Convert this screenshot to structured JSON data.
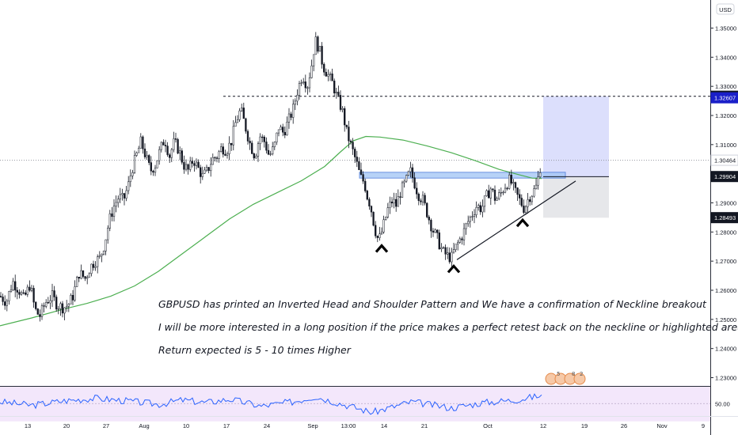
{
  "header": {
    "currency": "USD"
  },
  "chart_data": {
    "type": "candlestick",
    "symbol": "GBPUSD",
    "currency": "USD",
    "price_axis": {
      "ylim": [
        1.2255,
        1.3575
      ],
      "ticks": [
        1.35,
        1.34,
        1.33,
        1.32,
        1.31,
        1.3,
        1.29,
        1.28,
        1.27,
        1.26,
        1.25,
        1.24,
        1.23
      ],
      "tick_labels": [
        "1.35000",
        "1.34000",
        "1.33000",
        "1.32000",
        "1.31000",
        "1.30000",
        "1.29000",
        "1.28000",
        "1.27000",
        "1.26000",
        "1.25000",
        "1.24000",
        "1.23000"
      ]
    },
    "price_markers": [
      {
        "label": "1.32661",
        "value": 1.32661,
        "style": "dark"
      },
      {
        "label": "1.32607",
        "value": 1.32607,
        "style": "blue"
      },
      {
        "label": "1.30464",
        "value": 1.30464,
        "style": "light"
      },
      {
        "label": "1.29904",
        "value": 1.29904,
        "style": "dark"
      },
      {
        "label": "1.28493",
        "value": 1.28493,
        "style": "dark"
      }
    ],
    "time_axis": {
      "labels": [
        "13",
        "20",
        "27",
        "Aug",
        "10",
        "17",
        "24",
        "Sep",
        "13:00",
        "14",
        "21",
        "Oct",
        "12",
        "19",
        "26",
        "Nov",
        "9"
      ]
    },
    "price_path": [
      [
        0,
        1.258
      ],
      [
        8,
        1.256
      ],
      [
        16,
        1.263
      ],
      [
        24,
        1.26
      ],
      [
        30,
        1.257
      ],
      [
        38,
        1.262
      ],
      [
        44,
        1.2535
      ],
      [
        50,
        1.251
      ],
      [
        58,
        1.256
      ],
      [
        66,
        1.258
      ],
      [
        72,
        1.255
      ],
      [
        80,
        1.254
      ],
      [
        86,
        1.255
      ],
      [
        92,
        1.258
      ],
      [
        100,
        1.266
      ],
      [
        108,
        1.264
      ],
      [
        114,
        1.268
      ],
      [
        120,
        1.27
      ],
      [
        126,
        1.271
      ],
      [
        132,
        1.276
      ],
      [
        138,
        1.284
      ],
      [
        144,
        1.289
      ],
      [
        150,
        1.292
      ],
      [
        156,
        1.291
      ],
      [
        162,
        1.296
      ],
      [
        166,
        1.301
      ],
      [
        172,
        1.306
      ],
      [
        178,
        1.311
      ],
      [
        184,
        1.306
      ],
      [
        190,
        1.301
      ],
      [
        196,
        1.303
      ],
      [
        202,
        1.308
      ],
      [
        208,
        1.312
      ],
      [
        214,
        1.306
      ],
      [
        220,
        1.311
      ],
      [
        226,
        1.308
      ],
      [
        232,
        1.303
      ],
      [
        238,
        1.301
      ],
      [
        244,
        1.305
      ],
      [
        250,
        1.302
      ],
      [
        256,
        1.299
      ],
      [
        262,
        1.301
      ],
      [
        268,
        1.305
      ],
      [
        274,
        1.306
      ],
      [
        280,
        1.309
      ],
      [
        286,
        1.308
      ],
      [
        292,
        1.311
      ],
      [
        298,
        1.318
      ],
      [
        304,
        1.322
      ],
      [
        310,
        1.316
      ],
      [
        316,
        1.31
      ],
      [
        322,
        1.306
      ],
      [
        328,
        1.313
      ],
      [
        334,
        1.311
      ],
      [
        340,
        1.306
      ],
      [
        346,
        1.309
      ],
      [
        352,
        1.316
      ],
      [
        358,
        1.314
      ],
      [
        364,
        1.318
      ],
      [
        370,
        1.322
      ],
      [
        376,
        1.329
      ],
      [
        382,
        1.334
      ],
      [
        388,
        1.33
      ],
      [
        394,
        1.338
      ],
      [
        398,
        1.346
      ],
      [
        403,
        1.343
      ],
      [
        408,
        1.337
      ],
      [
        414,
        1.334
      ],
      [
        420,
        1.331
      ],
      [
        426,
        1.326
      ],
      [
        432,
        1.322
      ],
      [
        438,
        1.314
      ],
      [
        444,
        1.309
      ],
      [
        450,
        1.304
      ],
      [
        455,
        1.299
      ],
      [
        460,
        1.297
      ],
      [
        464,
        1.292
      ],
      [
        468,
        1.289
      ],
      [
        472,
        1.283
      ],
      [
        476,
        1.278
      ],
      [
        480,
        1.278
      ],
      [
        484,
        1.282
      ],
      [
        490,
        1.288
      ],
      [
        496,
        1.291
      ],
      [
        500,
        1.289
      ],
      [
        506,
        1.294
      ],
      [
        512,
        1.297
      ],
      [
        518,
        1.301
      ],
      [
        522,
        1.298
      ],
      [
        528,
        1.293
      ],
      [
        534,
        1.291
      ],
      [
        540,
        1.286
      ],
      [
        546,
        1.281
      ],
      [
        552,
        1.278
      ],
      [
        556,
        1.275
      ],
      [
        560,
        1.273
      ],
      [
        564,
        1.272
      ],
      [
        570,
        1.271
      ],
      [
        574,
        1.274
      ],
      [
        578,
        1.276
      ],
      [
        584,
        1.279
      ],
      [
        590,
        1.283
      ],
      [
        596,
        1.286
      ],
      [
        602,
        1.289
      ],
      [
        608,
        1.288
      ],
      [
        614,
        1.292
      ],
      [
        620,
        1.295
      ],
      [
        626,
        1.291
      ],
      [
        632,
        1.293
      ],
      [
        638,
        1.296
      ],
      [
        644,
        1.298
      ],
      [
        650,
        1.294
      ],
      [
        656,
        1.291
      ],
      [
        662,
        1.288
      ],
      [
        668,
        1.292
      ],
      [
        674,
        1.294
      ],
      [
        678,
        1.296
      ],
      [
        682,
        1.302
      ],
      [
        684,
        1.3046
      ]
    ],
    "moving_average": [
      [
        0,
        1.2478
      ],
      [
        40,
        1.2505
      ],
      [
        80,
        1.2535
      ],
      [
        110,
        1.2555
      ],
      [
        140,
        1.258
      ],
      [
        170,
        1.2615
      ],
      [
        200,
        1.2665
      ],
      [
        230,
        1.2725
      ],
      [
        260,
        1.2785
      ],
      [
        290,
        1.2845
      ],
      [
        320,
        1.2895
      ],
      [
        350,
        1.2935
      ],
      [
        380,
        1.2975
      ],
      [
        410,
        1.3025
      ],
      [
        430,
        1.3075
      ],
      [
        446,
        1.3113
      ],
      [
        462,
        1.3128
      ],
      [
        480,
        1.3126
      ],
      [
        510,
        1.3115
      ],
      [
        540,
        1.3095
      ],
      [
        570,
        1.3072
      ],
      [
        600,
        1.3045
      ],
      [
        630,
        1.3015
      ],
      [
        655,
        1.2997
      ],
      [
        672,
        1.2985
      ],
      [
        684,
        1.2984
      ]
    ],
    "neckline_zone": {
      "x_from": 454,
      "x_to": 714,
      "y_from": 1.2985,
      "y_to": 1.3005
    },
    "target_zone": {
      "x_from": 686,
      "x_to": 769,
      "y_from": 1.299,
      "y_to": 1.3266
    },
    "stop_zone": {
      "x_from": 686,
      "x_to": 769,
      "y_from": 1.2849,
      "y_to": 1.299
    },
    "resistance_level": 1.3266,
    "current_price": 1.30464,
    "trendline": [
      [
        577,
        1.2705
      ],
      [
        727,
        1.2975
      ]
    ],
    "pattern_marks": [
      {
        "name": "left-shoulder-mark",
        "x": 482,
        "y": 1.2745
      },
      {
        "name": "head-mark",
        "x": 573,
        "y": 1.2675
      },
      {
        "name": "right-shoulder-mark",
        "x": 660,
        "y": 1.2833
      }
    ],
    "rsi": {
      "ylim": [
        36,
        68
      ],
      "tick": 50,
      "tick_label": "50.00",
      "band": [
        30,
        70
      ],
      "values": [
        [
          0,
          52
        ],
        [
          40,
          48
        ],
        [
          80,
          53
        ],
        [
          120,
          56
        ],
        [
          160,
          53
        ],
        [
          200,
          49
        ],
        [
          230,
          54
        ],
        [
          260,
          51
        ],
        [
          290,
          55
        ],
        [
          330,
          47
        ],
        [
          370,
          52
        ],
        [
          398,
          58
        ],
        [
          430,
          50
        ],
        [
          470,
          40
        ],
        [
          520,
          52
        ],
        [
          570,
          45
        ],
        [
          610,
          51
        ],
        [
          650,
          54
        ],
        [
          684,
          59
        ]
      ]
    }
  },
  "annotation": {
    "line1": "GBPUSD has printed an Inverted Head and Shoulder Pattern and We have a confirmation of Neckline breakout",
    "line2": "I will be more interested in a long position if the price makes a perfect retest back on the neckline or highlighted area",
    "line3": "Return expected is 5 - 10 times Higher"
  },
  "event_icons": {
    "labels": [
      "5",
      "8",
      "2"
    ]
  }
}
